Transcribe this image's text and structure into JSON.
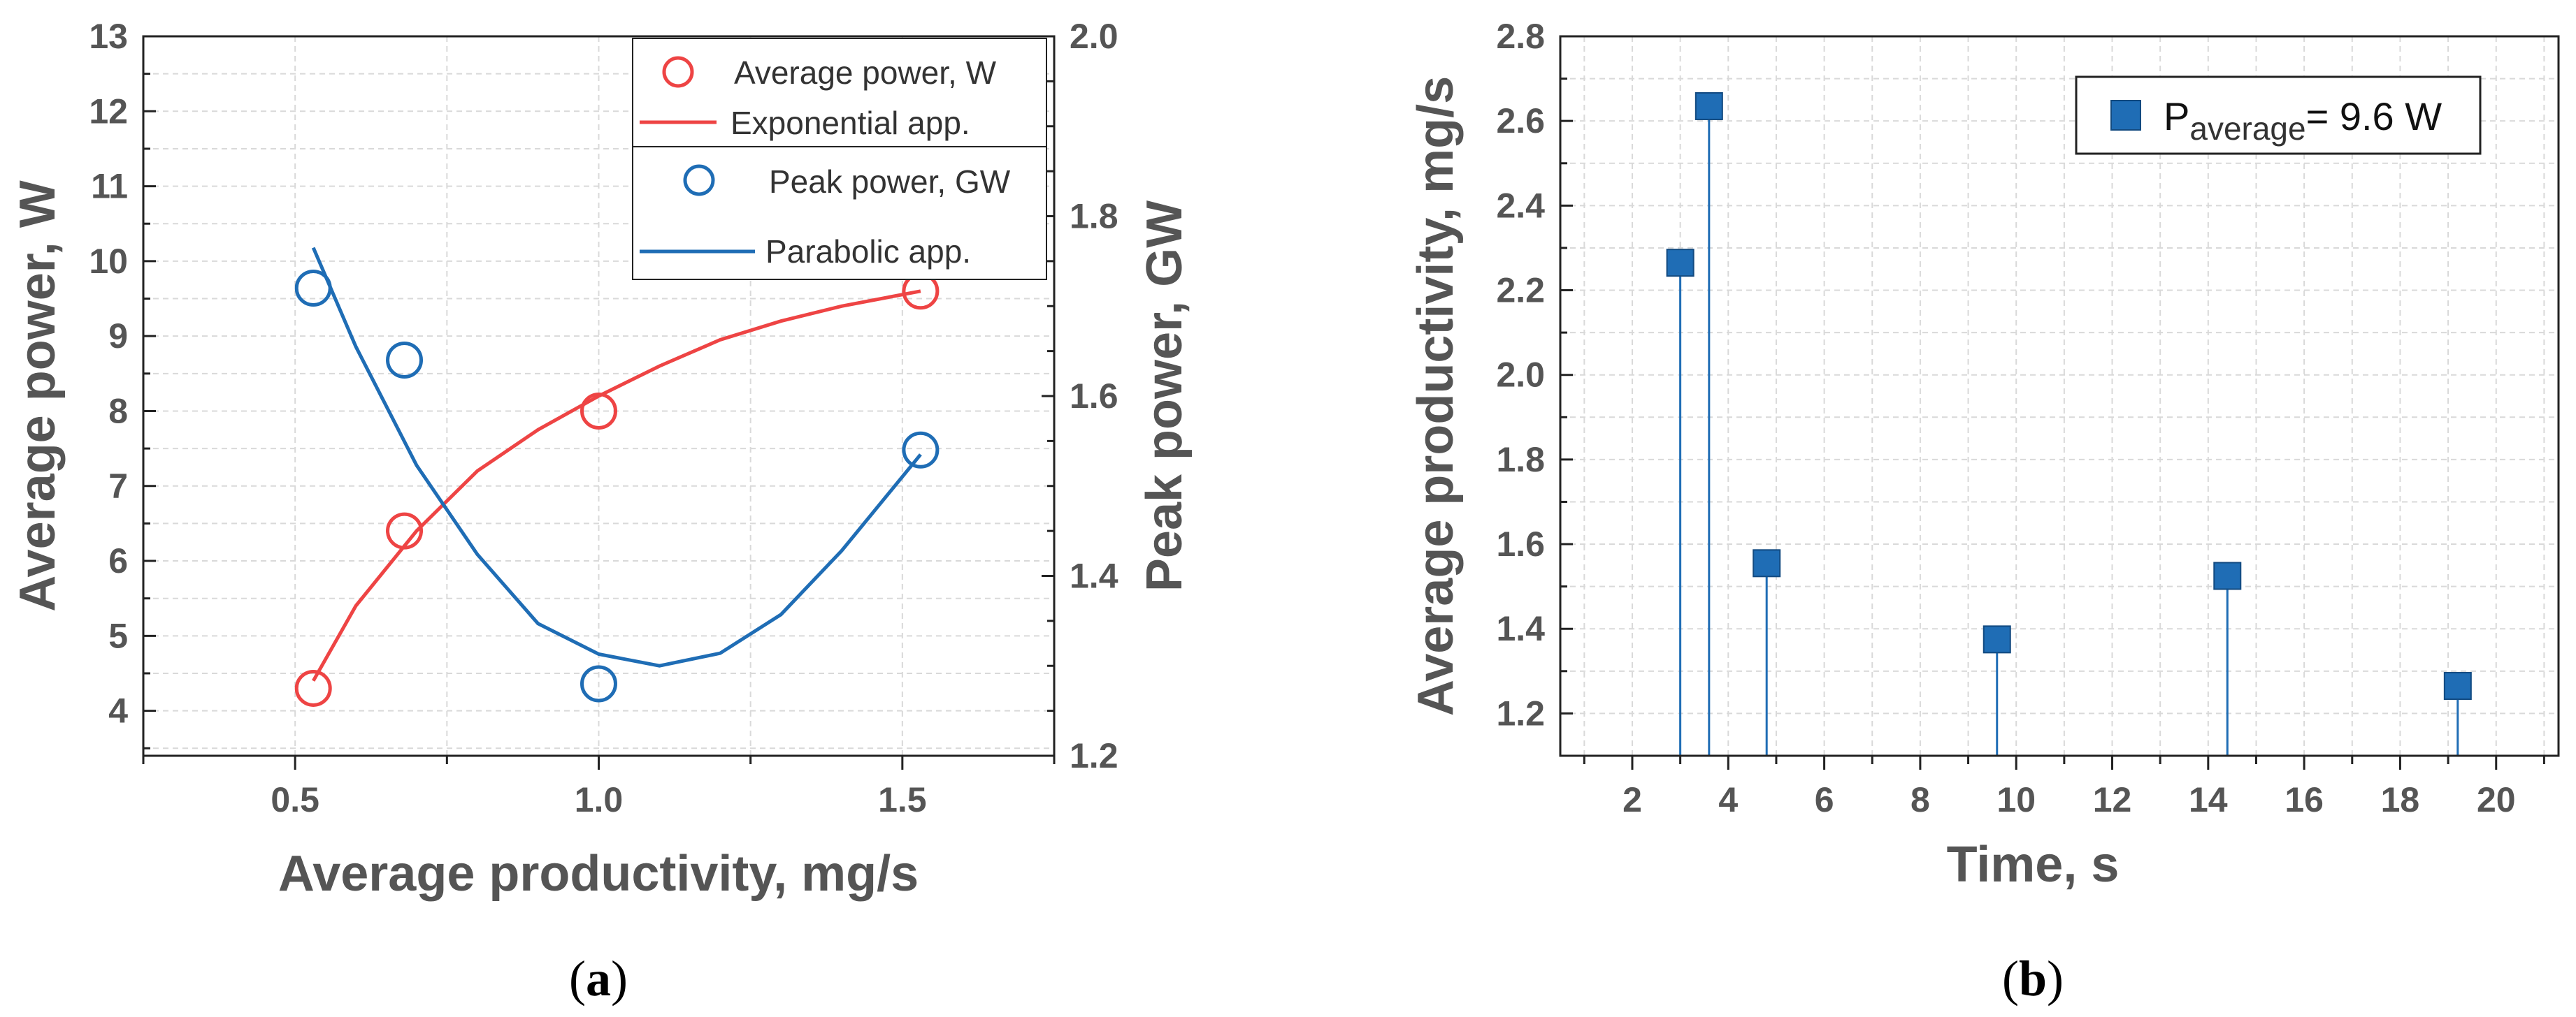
{
  "chart_data": [
    {
      "id": "a",
      "type": "scatter",
      "caption_label": "a",
      "xlabel": "Average productivity, mg/s",
      "ylabel_left": "Average power, W",
      "ylabel_right": "Peak power, GW",
      "xlim": [
        0.25,
        1.75
      ],
      "ylim_left": [
        3.4,
        13.0
      ],
      "ylim_right": [
        1.2,
        2.0
      ],
      "xticks": [
        "0.5",
        "1.0",
        "1.5"
      ],
      "yticks_left": [
        "4",
        "5",
        "6",
        "7",
        "8",
        "9",
        "10",
        "11",
        "12",
        "13"
      ],
      "yticks_right": [
        "1.2",
        "1.4",
        "1.6",
        "1.8",
        "2.0"
      ],
      "series": [
        {
          "name": "Average power, W",
          "axis": "left",
          "color": "#ee4444",
          "marker": "open-circle",
          "x": [
            0.53,
            0.68,
            1.0,
            1.53
          ],
          "y": [
            4.3,
            6.4,
            8.0,
            9.6
          ]
        },
        {
          "name": "Exponential app.",
          "axis": "left",
          "color": "#ee4444",
          "style": "line",
          "x": [
            0.53,
            0.6,
            0.7,
            0.8,
            0.9,
            1.0,
            1.1,
            1.2,
            1.3,
            1.4,
            1.53
          ],
          "y": [
            4.4,
            5.4,
            6.4,
            7.2,
            7.75,
            8.2,
            8.6,
            8.95,
            9.2,
            9.4,
            9.6
          ]
        },
        {
          "name": "Peak power, GW",
          "axis": "right",
          "color": "#1f6db5",
          "marker": "open-circle",
          "x": [
            0.53,
            0.68,
            1.0,
            1.53
          ],
          "y": [
            1.72,
            1.64,
            1.28,
            1.54
          ]
        },
        {
          "name": "Parabolic app.",
          "axis": "right",
          "color": "#1f6db5",
          "style": "line",
          "x": [
            0.53,
            0.6,
            0.7,
            0.8,
            0.9,
            1.0,
            1.1,
            1.2,
            1.3,
            1.4,
            1.53
          ],
          "y": [
            1.765,
            1.655,
            1.523,
            1.424,
            1.347,
            1.313,
            1.3,
            1.314,
            1.357,
            1.428,
            1.535
          ]
        }
      ]
    },
    {
      "id": "b",
      "type": "scatter",
      "caption_label": "b",
      "xlabel": "Time, s",
      "ylabel": "Average productivity, mg/s",
      "xlim": [
        0.5,
        21.3
      ],
      "ylim": [
        1.1,
        2.8
      ],
      "xticks": [
        "2",
        "4",
        "6",
        "8",
        "10",
        "12",
        "14",
        "16",
        "18",
        "20"
      ],
      "yticks": [
        "1.2",
        "1.4",
        "1.6",
        "1.8",
        "2.0",
        "2.2",
        "2.4",
        "2.6",
        "2.8"
      ],
      "legend_main": "P",
      "legend_sub": "average",
      "legend_value": "= 9.6 W",
      "series": [
        {
          "name": "P average = 9.6 W",
          "color": "#1f6db5",
          "marker": "filled-square",
          "drop_lines": true,
          "x": [
            3.0,
            3.6,
            4.8,
            9.6,
            14.4,
            19.2
          ],
          "y": [
            2.265,
            2.635,
            1.555,
            1.375,
            1.525,
            1.265
          ]
        }
      ]
    }
  ]
}
